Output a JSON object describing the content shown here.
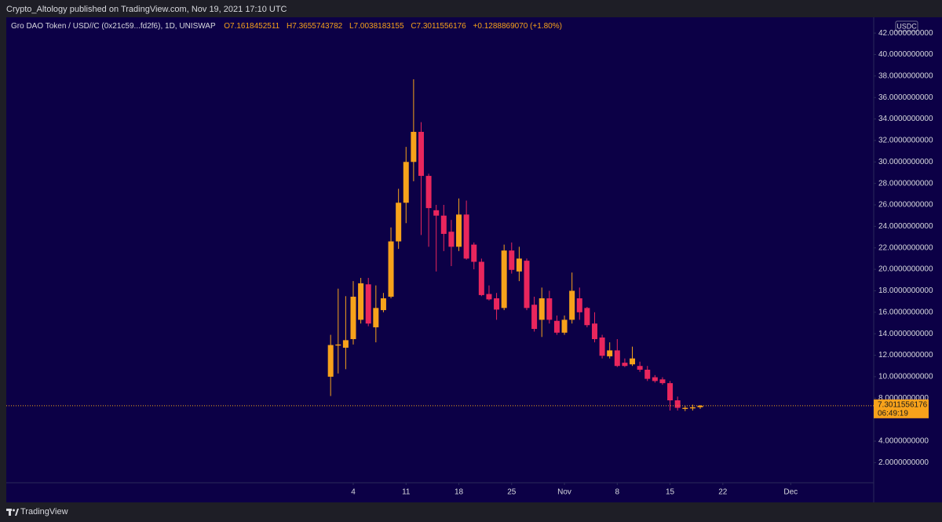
{
  "publish_info": "Crypto_Altology published on TradingView.com, Nov 19, 2021 17:10 UTC",
  "footer": "TradingView",
  "chart_data": {
    "type": "candlestick",
    "title": "Gro DAO Token / USD//C (0x21c59...fd2f6), 1D, UNISWAP",
    "ohlc_labels": [
      "O7.1618452511",
      "H7.3655743782",
      "L7.0038183155",
      "C7.3011556176",
      "+0.1288869070 (+1.80%)"
    ],
    "unit": "USDC",
    "countdown": "06:49:19",
    "up_color": "#f7a21b",
    "down_color": "#e9265d",
    "grid": false,
    "x": [
      "2021-10-01",
      "2021-10-02",
      "2021-10-03",
      "2021-10-04",
      "2021-10-05",
      "2021-10-06",
      "2021-10-07",
      "2021-10-08",
      "2021-10-09",
      "2021-10-10",
      "2021-10-11",
      "2021-10-12",
      "2021-10-13",
      "2021-10-14",
      "2021-10-15",
      "2021-10-16",
      "2021-10-17",
      "2021-10-18",
      "2021-10-19",
      "2021-10-20",
      "2021-10-21",
      "2021-10-22",
      "2021-10-23",
      "2021-10-24",
      "2021-10-25",
      "2021-10-26",
      "2021-10-27",
      "2021-10-28",
      "2021-10-29",
      "2021-10-30",
      "2021-10-31",
      "2021-11-01",
      "2021-11-02",
      "2021-11-03",
      "2021-11-04",
      "2021-11-05",
      "2021-11-06",
      "2021-11-07",
      "2021-11-08",
      "2021-11-09",
      "2021-11-10",
      "2021-11-11",
      "2021-11-12",
      "2021-11-13",
      "2021-11-14",
      "2021-11-15",
      "2021-11-16",
      "2021-11-17",
      "2021-11-18",
      "2021-11-19"
    ],
    "open": [
      10.0,
      12.9,
      12.7,
      13.5,
      15.3,
      18.6,
      14.6,
      16.2,
      17.45,
      22.6,
      26.2,
      30.0,
      32.8,
      28.7,
      25.5,
      25.0,
      23.5,
      22.1,
      25.1,
      22.3,
      20.7,
      17.7,
      17.3,
      16.4,
      21.75,
      19.8,
      20.8,
      16.7,
      15.3,
      17.3,
      15.2,
      14.1,
      15.3,
      17.3,
      16.4,
      14.95,
      13.65,
      11.9,
      12.45,
      11.3,
      11.15,
      11.0,
      10.65,
      9.95,
      9.75,
      9.4,
      7.8,
      7.0,
      7.05,
      7.1618452511
    ],
    "high": [
      13.9,
      18.2,
      17.5,
      18.9,
      19.2,
      19.2,
      18.5,
      17.8,
      23.9,
      27.5,
      31.4,
      37.7,
      33.7,
      28.9,
      26.0,
      26.0,
      24.6,
      26.6,
      26.4,
      22.5,
      21.0,
      18.5,
      17.8,
      22.3,
      22.5,
      22.1,
      21.0,
      17.45,
      18.3,
      18.0,
      15.7,
      15.7,
      19.7,
      18.3,
      16.5,
      16.0,
      13.9,
      13.2,
      13.5,
      11.7,
      12.8,
      11.4,
      11.0,
      10.15,
      9.95,
      9.6,
      8.15,
      7.3,
      7.4,
      7.3655743782
    ],
    "low": [
      8.2,
      10.3,
      10.7,
      13.0,
      14.95,
      14.7,
      13.2,
      16.0,
      17.3,
      21.9,
      24.3,
      28.2,
      23.2,
      22.1,
      19.8,
      21.7,
      20.3,
      21.7,
      20.9,
      20.0,
      17.5,
      17.1,
      15.3,
      16.2,
      19.6,
      18.9,
      16.2,
      14.2,
      13.7,
      14.95,
      13.9,
      13.9,
      14.95,
      15.3,
      14.6,
      13.2,
      11.7,
      11.7,
      10.9,
      10.9,
      11.0,
      10.45,
      9.6,
      9.45,
      9.25,
      6.85,
      6.85,
      6.8,
      6.85,
      7.0038183155
    ],
    "close": [
      12.95,
      13.0,
      13.4,
      17.45,
      18.7,
      14.95,
      16.4,
      17.3,
      22.6,
      26.2,
      30.0,
      32.8,
      28.7,
      25.7,
      25.0,
      23.3,
      22.1,
      25.1,
      21.0,
      20.7,
      17.6,
      17.2,
      16.25,
      21.75,
      19.95,
      21.0,
      16.4,
      14.45,
      17.3,
      15.3,
      14.1,
      15.3,
      18.0,
      16.0,
      14.8,
      13.5,
      11.95,
      12.45,
      11.0,
      11.0,
      11.7,
      10.65,
      9.8,
      9.6,
      9.4,
      7.8,
      7.1,
      7.1,
      7.15,
      7.3011556176
    ],
    "xlim": [
      "2021-08-19",
      "2021-12-12"
    ],
    "xticks": [
      {
        "value": "2021-10-04",
        "label": "4"
      },
      {
        "value": "2021-10-11",
        "label": "11"
      },
      {
        "value": "2021-10-18",
        "label": "18"
      },
      {
        "value": "2021-10-25",
        "label": "25"
      },
      {
        "value": "2021-11-01",
        "label": "Nov"
      },
      {
        "value": "2021-11-08",
        "label": "8"
      },
      {
        "value": "2021-11-15",
        "label": "15"
      },
      {
        "value": "2021-11-22",
        "label": "22"
      },
      {
        "value": "2021-12-01",
        "label": "Dec"
      }
    ],
    "ylim": [
      0.125,
      43.47
    ],
    "yticks": [
      {
        "value": 2,
        "label": "2.0000000000"
      },
      {
        "value": 4,
        "label": "4.0000000000"
      },
      {
        "value": 8,
        "label": "8.0000000000"
      },
      {
        "value": 10,
        "label": "10.0000000000"
      },
      {
        "value": 12,
        "label": "12.0000000000"
      },
      {
        "value": 14,
        "label": "14.0000000000"
      },
      {
        "value": 16,
        "label": "16.0000000000"
      },
      {
        "value": 18,
        "label": "18.0000000000"
      },
      {
        "value": 20,
        "label": "20.0000000000"
      },
      {
        "value": 22,
        "label": "22.0000000000"
      },
      {
        "value": 24,
        "label": "24.0000000000"
      },
      {
        "value": 26,
        "label": "26.0000000000"
      },
      {
        "value": 28,
        "label": "28.0000000000"
      },
      {
        "value": 30,
        "label": "30.0000000000"
      },
      {
        "value": 32,
        "label": "32.0000000000"
      },
      {
        "value": 34,
        "label": "34.0000000000"
      },
      {
        "value": 36,
        "label": "36.0000000000"
      },
      {
        "value": 38,
        "label": "38.0000000000"
      },
      {
        "value": 40,
        "label": "40.0000000000"
      },
      {
        "value": 42,
        "label": "42.0000000000"
      }
    ]
  }
}
